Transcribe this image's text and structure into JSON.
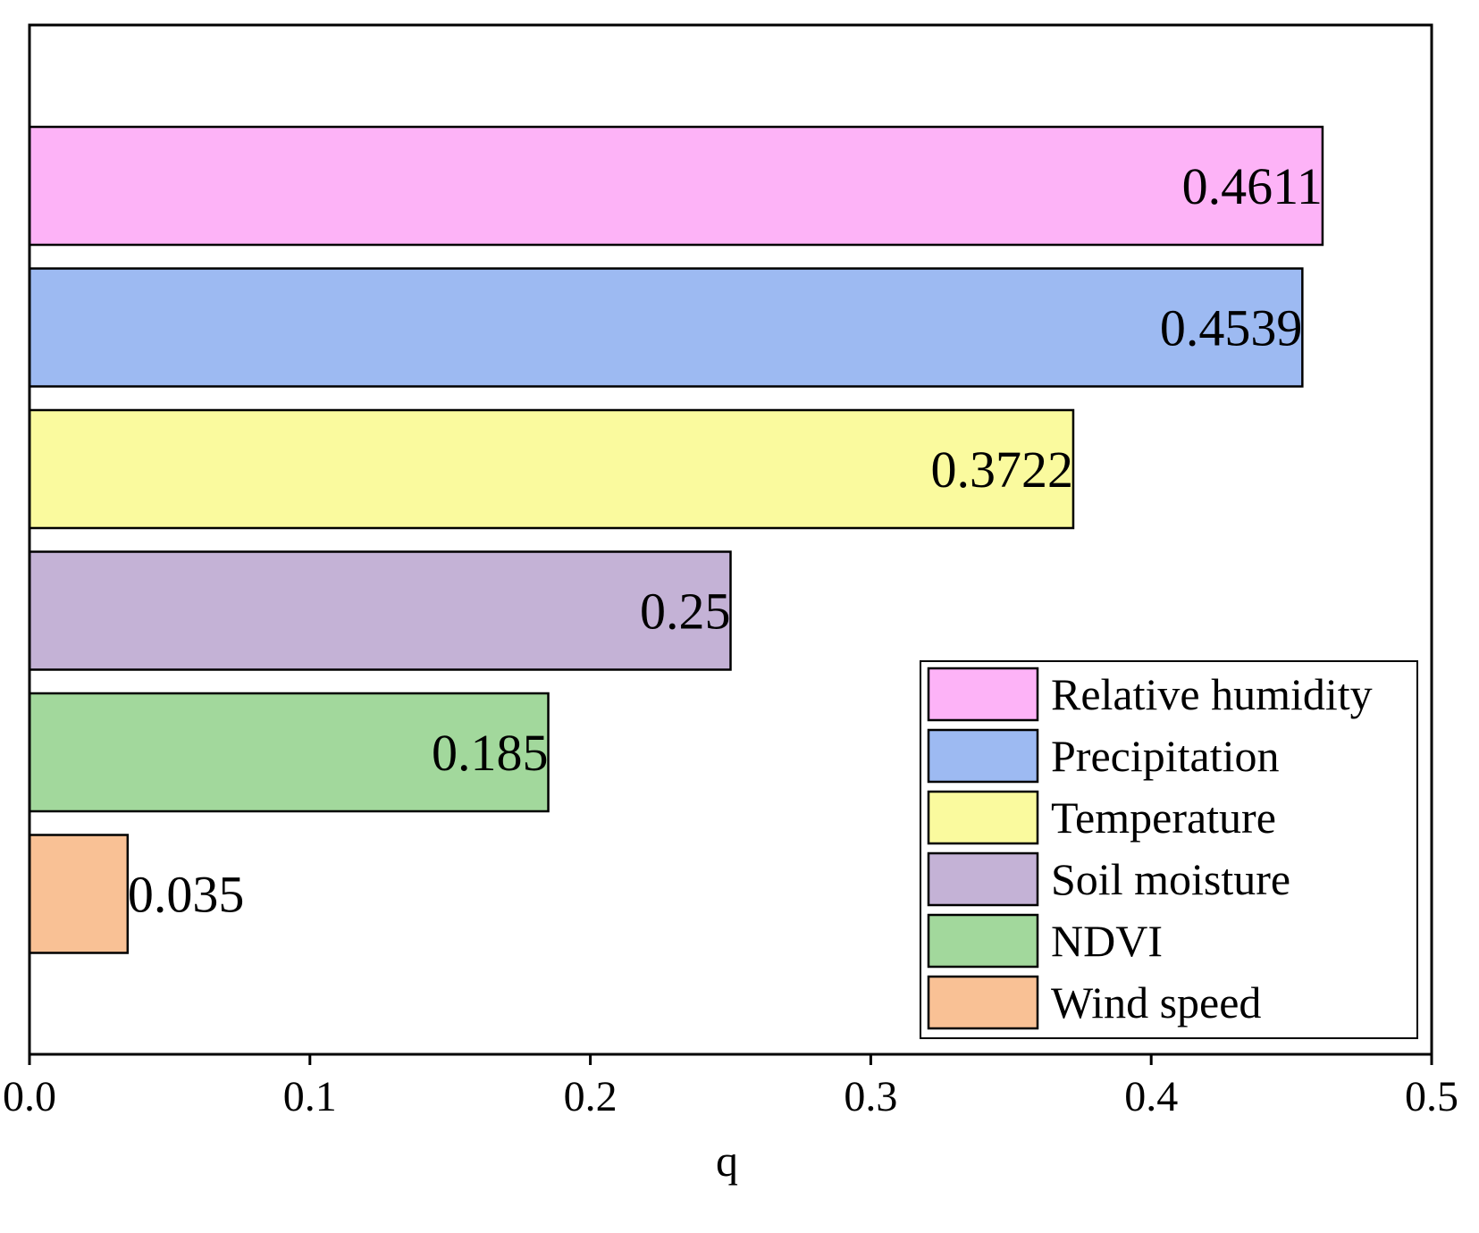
{
  "chart_data": {
    "type": "bar",
    "orientation": "horizontal",
    "title": "",
    "xlabel": "q",
    "ylabel": "",
    "xlim": [
      0,
      0.5
    ],
    "x_ticks": [
      0,
      0.1,
      0.2,
      0.3,
      0.4,
      0.5
    ],
    "x_tick_labels": [
      "0.0",
      "0.1",
      "0.2",
      "0.3",
      "0.4",
      "0.5"
    ],
    "grid": false,
    "legend_position": "bottom-right",
    "bars": [
      {
        "name": "Relative humidity",
        "value": 0.4611,
        "label": "0.4611",
        "color": "#FDB3F7"
      },
      {
        "name": "Precipitation",
        "value": 0.4539,
        "label": "0.4539",
        "color": "#9DBAF2"
      },
      {
        "name": "Temperature",
        "value": 0.3722,
        "label": "0.3722",
        "color": "#FAFA9E"
      },
      {
        "name": "Soil moisture",
        "value": 0.25,
        "label": "0.25",
        "color": "#C4B2D6"
      },
      {
        "name": "NDVI",
        "value": 0.185,
        "label": "0.185",
        "color": "#A2D89C"
      },
      {
        "name": "Wind speed",
        "value": 0.035,
        "label": "0.035",
        "color": "#F9C195"
      }
    ]
  }
}
